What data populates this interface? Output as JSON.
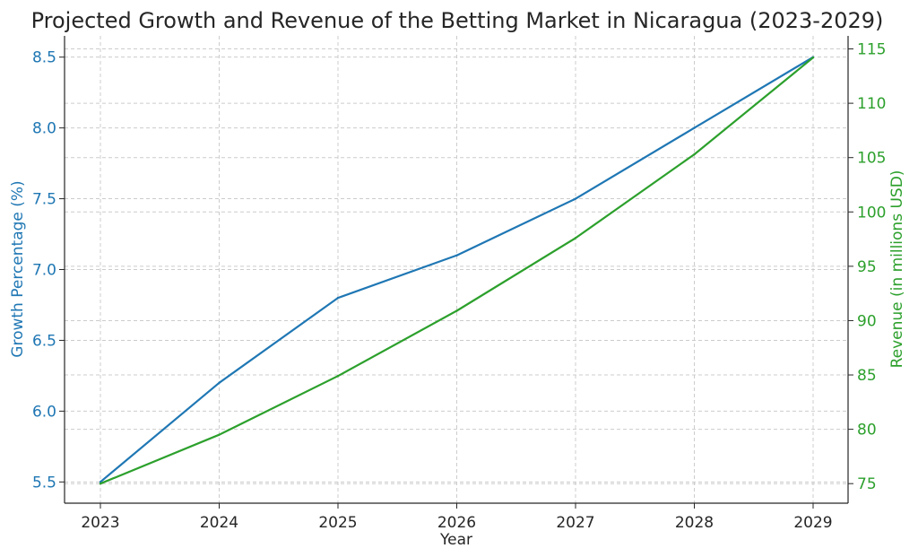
{
  "chart_data": {
    "type": "line",
    "title": "Projected Growth and Revenue of the Betting Market in Nicaragua (2023-2029)",
    "xlabel": "Year",
    "ylabel_left": "Growth Percentage (%)",
    "ylabel_right": "Revenue (in millions USD)",
    "categories": [
      "2023",
      "2024",
      "2025",
      "2026",
      "2027",
      "2028",
      "2029"
    ],
    "left_ticks": [
      "5.5",
      "6.0",
      "6.5",
      "7.0",
      "7.5",
      "8.0",
      "8.5"
    ],
    "right_ticks": [
      "75",
      "80",
      "85",
      "90",
      "95",
      "100",
      "105",
      "110",
      "115"
    ],
    "ylim_left": [
      5.35,
      8.65
    ],
    "ylim_right": [
      73.2,
      116.2
    ],
    "grid": true,
    "series": [
      {
        "axis": "left",
        "values": [
          5.5,
          6.2,
          6.8,
          7.1,
          7.5,
          8.0,
          8.5
        ]
      },
      {
        "axis": "right",
        "values": [
          75.0,
          79.5,
          84.9,
          90.9,
          97.6,
          105.3,
          114.2
        ]
      }
    ],
    "colors": {
      "left": "#1f77b4",
      "right": "#2ca02c",
      "axis": "#262626",
      "grid": "#cccccc"
    }
  }
}
